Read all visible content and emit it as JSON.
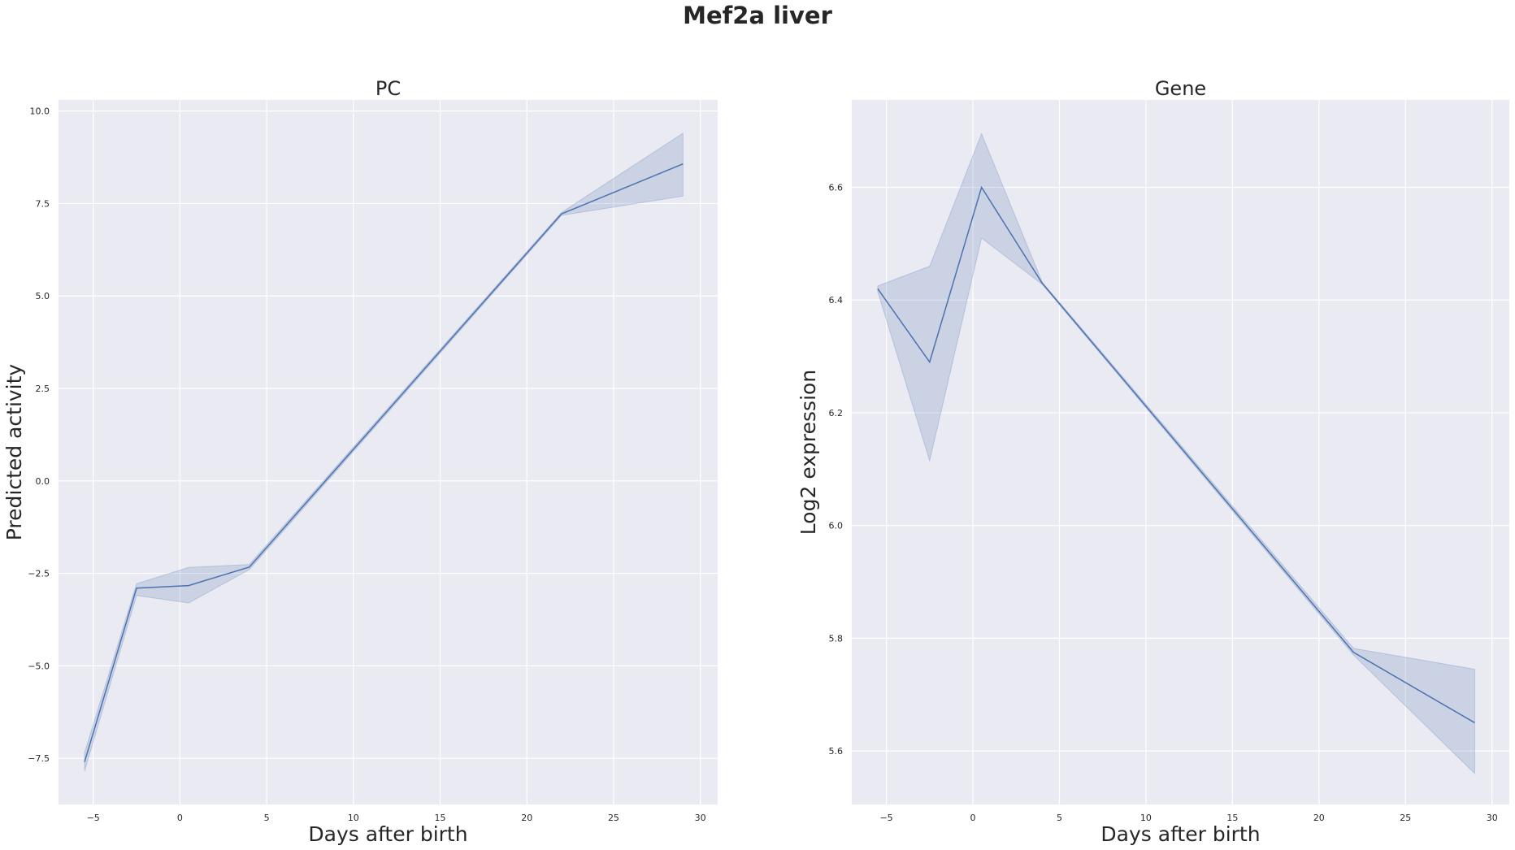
{
  "figure_title": "Mef2a liver",
  "chart_data": [
    {
      "type": "line",
      "title": "PC",
      "xlabel": "Days after birth",
      "ylabel": "Predicted activity",
      "xlim": [
        -7,
        31
      ],
      "ylim": [
        -8.75,
        10.3
      ],
      "xticks": [
        -5,
        0,
        5,
        10,
        15,
        20,
        25,
        30
      ],
      "xtick_labels": [
        "−5",
        "0",
        "5",
        "10",
        "15",
        "20",
        "25",
        "30"
      ],
      "yticks": [
        -7.5,
        -5,
        -2.5,
        0,
        2.5,
        5,
        7.5,
        10
      ],
      "ytick_labels": [
        "−7.5",
        "−5.0",
        "−2.5",
        "0.0",
        "2.5",
        "5.0",
        "7.5",
        "10.0"
      ],
      "grid": true,
      "series": [
        {
          "color": "#4c72b0",
          "x": [
            -5.5,
            -2.5,
            0.5,
            4,
            22,
            29
          ],
          "y": [
            -7.6,
            -2.9,
            -2.83,
            -2.33,
            7.22,
            8.57
          ],
          "ci_low": [
            -7.85,
            -3.1,
            -3.3,
            -2.4,
            7.18,
            7.7
          ],
          "ci_high": [
            -7.35,
            -2.78,
            -2.34,
            -2.26,
            7.26,
            9.4
          ]
        }
      ]
    },
    {
      "type": "line",
      "title": "Gene",
      "xlabel": "Days after birth",
      "ylabel": "Log2 expression",
      "xlim": [
        -7,
        31
      ],
      "ylim": [
        5.505,
        6.755
      ],
      "xticks": [
        -5,
        0,
        5,
        10,
        15,
        20,
        25,
        30
      ],
      "xtick_labels": [
        "−5",
        "0",
        "5",
        "10",
        "15",
        "20",
        "25",
        "30"
      ],
      "yticks": [
        5.6,
        5.8,
        6.0,
        6.2,
        6.4,
        6.6
      ],
      "ytick_labels": [
        "5.6",
        "5.8",
        "6.0",
        "6.2",
        "6.4",
        "6.6"
      ],
      "grid": true,
      "series": [
        {
          "color": "#4c72b0",
          "x": [
            -5.5,
            -2.5,
            0.5,
            4,
            22,
            29
          ],
          "y": [
            6.42,
            6.29,
            6.6,
            6.43,
            5.775,
            5.65
          ],
          "ci_low": [
            6.415,
            6.115,
            6.51,
            6.428,
            5.77,
            5.56
          ],
          "ci_high": [
            6.425,
            6.46,
            6.695,
            6.432,
            5.782,
            5.745
          ]
        }
      ]
    }
  ]
}
